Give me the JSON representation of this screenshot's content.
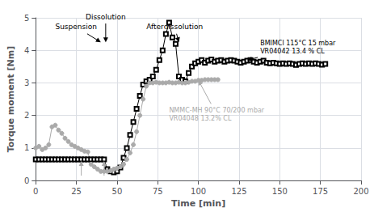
{
  "chart_data": {
    "type": "line",
    "xlabel": "Time [min]",
    "ylabel": "Torque moment [Nm]",
    "xlim": [
      0,
      200
    ],
    "ylim": [
      0,
      5
    ],
    "xticks": [
      0,
      25,
      50,
      75,
      100,
      125,
      150,
      175,
      200
    ],
    "yticks": [
      0,
      1,
      2,
      3,
      4,
      5
    ],
    "grid": true,
    "series": [
      {
        "color": "#000000",
        "marker": "open square",
        "x": [
          0,
          2,
          4,
          6,
          8,
          10,
          12,
          14,
          16,
          18,
          20,
          22,
          24,
          26,
          28,
          30,
          32,
          34,
          36,
          38,
          40,
          42,
          44,
          46,
          48,
          50,
          52,
          54,
          56,
          58,
          60,
          62,
          64,
          66,
          68,
          70,
          72,
          74,
          76,
          78,
          80,
          82,
          84,
          86,
          88,
          90,
          92,
          94,
          96,
          98,
          100,
          102,
          104,
          106,
          108,
          110,
          112,
          114,
          116,
          118,
          120,
          122,
          124,
          126,
          128,
          130,
          132,
          134,
          136,
          138,
          140,
          142,
          144,
          146,
          148,
          150,
          152,
          154,
          156,
          158,
          160,
          162,
          164,
          166,
          168,
          170,
          172,
          174,
          176,
          178
        ],
        "values": [
          0.65,
          0.65,
          0.65,
          0.65,
          0.65,
          0.65,
          0.65,
          0.65,
          0.65,
          0.65,
          0.65,
          0.65,
          0.65,
          0.65,
          0.65,
          0.65,
          0.65,
          0.65,
          0.65,
          0.65,
          0.65,
          0.65,
          0.35,
          0.28,
          0.25,
          0.28,
          0.4,
          0.7,
          1.0,
          1.4,
          1.8,
          2.2,
          2.6,
          2.95,
          3.05,
          3.1,
          3.2,
          3.4,
          3.7,
          4.0,
          4.5,
          4.85,
          4.4,
          4.2,
          3.2,
          3.1,
          3.05,
          3.3,
          3.5,
          3.6,
          3.65,
          3.7,
          3.62,
          3.68,
          3.72,
          3.65,
          3.68,
          3.7,
          3.65,
          3.68,
          3.7,
          3.68,
          3.65,
          3.62,
          3.65,
          3.68,
          3.7,
          3.65,
          3.62,
          3.65,
          3.68,
          3.62,
          3.6,
          3.62,
          3.6,
          3.58,
          3.6,
          3.58,
          3.6,
          3.58,
          3.55,
          3.58,
          3.6,
          3.58,
          3.6,
          3.58,
          3.6,
          3.58,
          3.56,
          3.58
        ]
      },
      {
        "color": "#aaaaaa",
        "marker": "circle",
        "x": [
          0,
          2,
          4,
          6,
          8,
          10,
          12,
          14,
          16,
          18,
          20,
          22,
          24,
          26,
          28,
          30,
          32,
          34,
          36,
          38,
          40,
          42,
          44,
          46,
          48,
          50,
          52,
          54,
          56,
          58,
          60,
          62,
          64,
          66,
          68,
          70,
          72,
          74,
          76,
          78,
          80,
          82,
          84,
          86,
          88,
          90,
          92,
          94,
          96,
          98,
          100,
          102,
          104,
          106,
          108,
          110,
          112
        ],
        "values": [
          1.0,
          1.05,
          0.95,
          1.0,
          1.1,
          1.65,
          1.7,
          1.55,
          1.45,
          1.3,
          1.2,
          1.1,
          1.05,
          1.0,
          0.95,
          0.9,
          0.88,
          0.5,
          0.42,
          0.35,
          0.28,
          0.28,
          0.28,
          0.3,
          0.35,
          0.38,
          0.42,
          0.5,
          0.65,
          0.85,
          1.1,
          1.5,
          2.0,
          2.5,
          2.9,
          3.0,
          3.0,
          3.02,
          3.0,
          3.0,
          3.0,
          3.02,
          3.0,
          3.0,
          3.02,
          3.0,
          3.0,
          3.02,
          3.05,
          3.05,
          3.08,
          3.08,
          3.1,
          3.1,
          3.1,
          3.1,
          3.1
        ]
      }
    ],
    "annotations": [
      {
        "text": "Suspension",
        "x": 40,
        "y": 4.25,
        "text_x": 12,
        "text_y": 4.72,
        "color": "#000000"
      },
      {
        "text": "Dissolution",
        "x": 43,
        "y": 4.25,
        "text_x": 43,
        "text_y": 4.75,
        "color": "#000000"
      },
      {
        "text": "Afterdissolution",
        "x": 88,
        "y": 4.25,
        "text_x": 68,
        "text_y": 4.72,
        "color": "#000000"
      },
      {
        "text": "BMIMCl 115°C 15 mbar\nVR04042 13.4 % CL",
        "x": 130,
        "y": 3.7,
        "text_x": 138,
        "text_y": 4.35,
        "color": "#000000"
      },
      {
        "text": "NMMC-MH 90°C 70/200 mbar\nVR04048 13.2% CL",
        "x": 100,
        "y": 3.08,
        "text_x": 82,
        "text_y": 2.28,
        "color": "#aaaaaa"
      }
    ],
    "arrows": [
      {
        "x": 28,
        "y": 0.6,
        "from_x": 28,
        "from_y": 0.15,
        "color": "#aaaaaa"
      },
      {
        "x": 42,
        "y": 0.6,
        "from_x": 42,
        "from_y": 0.15,
        "color": "#aaaaaa"
      }
    ]
  }
}
